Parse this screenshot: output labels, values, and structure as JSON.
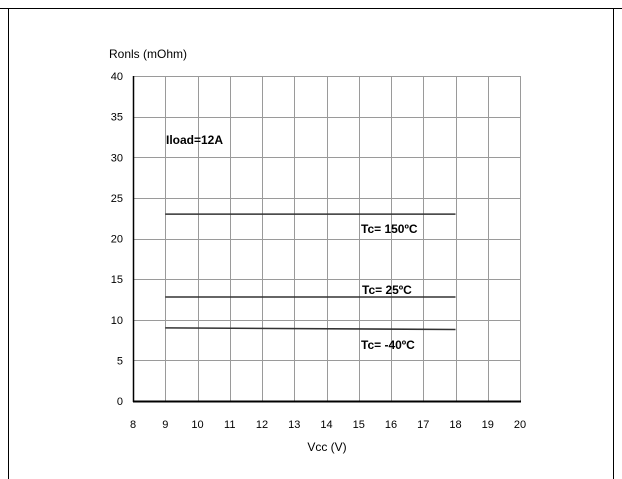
{
  "chart_data": {
    "type": "line",
    "title": "",
    "xlabel": "Vcc (V)",
    "ylabel": "Ronls (mOhm)",
    "xlim": [
      8,
      20
    ],
    "ylim": [
      0,
      40
    ],
    "x_ticks": [
      8,
      9,
      10,
      11,
      12,
      13,
      14,
      15,
      16,
      17,
      18,
      19,
      20
    ],
    "y_ticks": [
      0,
      5,
      10,
      15,
      20,
      25,
      30,
      35,
      40
    ],
    "grid": true,
    "legend": "none",
    "series": [
      {
        "name": "Tc= 150ºC",
        "x": [
          9,
          18
        ],
        "y": [
          23,
          23
        ]
      },
      {
        "name": "Tc= 25ºC",
        "x": [
          9,
          18
        ],
        "y": [
          12.8,
          12.8
        ]
      },
      {
        "name": "Tc= -40ºC",
        "x": [
          9,
          18
        ],
        "y": [
          9,
          8.8
        ]
      }
    ],
    "annotations": [
      {
        "text": "Iload=12A"
      }
    ]
  }
}
